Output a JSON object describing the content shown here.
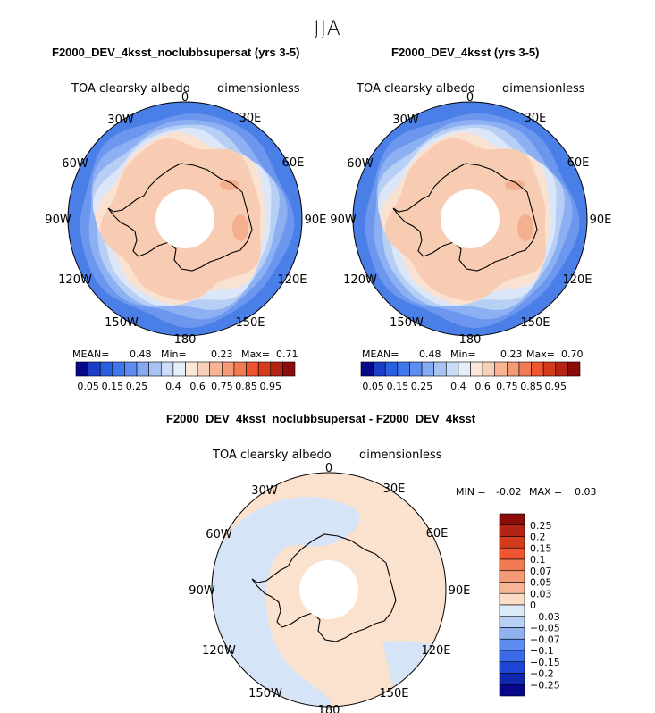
{
  "page_title": "JJA",
  "chart_data": [
    {
      "type": "heatmap",
      "projection": "south polar stereographic",
      "title": "F2000_DEV_4ksst_noclubbsupersat (yrs 3-5)",
      "variable": "TOA clearsky albedo",
      "units": "dimensionless",
      "stats": {
        "mean_label": "MEAN=",
        "mean": "0.48",
        "min_label": "Min=",
        "min": "0.23",
        "max_label": "Max=",
        "max": "0.71"
      },
      "longitude_labels": [
        "0",
        "30E",
        "60E",
        "90E",
        "120E",
        "150E",
        "180",
        "150W",
        "120W",
        "90W",
        "60W",
        "30W"
      ],
      "colorbar": {
        "levels": [
          "0.05",
          "0.15",
          "0.25",
          "0.4",
          "0.6",
          "0.75",
          "0.85",
          "0.95"
        ],
        "colors": [
          "#08088a",
          "#1a3ec8",
          "#2a5fe0",
          "#3f77ec",
          "#5d8df0",
          "#85aaf2",
          "#a9c4f4",
          "#cadcf7",
          "#e6eef9",
          "#fbe7d8",
          "#f8d0b8",
          "#f7b596",
          "#f49a76",
          "#f17a52",
          "#ee5530",
          "#d43a1c",
          "#b52314",
          "#8c0c0a"
        ]
      }
    },
    {
      "type": "heatmap",
      "projection": "south polar stereographic",
      "title": "F2000_DEV_4ksst (yrs 3-5)",
      "variable": "TOA clearsky albedo",
      "units": "dimensionless",
      "stats": {
        "mean_label": "MEAN=",
        "mean": "0.48",
        "min_label": "Min=",
        "min": "0.23",
        "max_label": "Max=",
        "max": "0.70"
      },
      "longitude_labels": [
        "0",
        "30E",
        "60E",
        "90E",
        "120E",
        "150E",
        "180",
        "150W",
        "120W",
        "90W",
        "60W",
        "30W"
      ],
      "colorbar": {
        "levels": [
          "0.05",
          "0.15",
          "0.25",
          "0.4",
          "0.6",
          "0.75",
          "0.85",
          "0.95"
        ],
        "colors": [
          "#08088a",
          "#1a3ec8",
          "#2a5fe0",
          "#3f77ec",
          "#5d8df0",
          "#85aaf2",
          "#a9c4f4",
          "#cadcf7",
          "#e6eef9",
          "#fbe7d8",
          "#f8d0b8",
          "#f7b596",
          "#f49a76",
          "#f17a52",
          "#ee5530",
          "#d43a1c",
          "#b52314",
          "#8c0c0a"
        ]
      }
    },
    {
      "type": "heatmap",
      "projection": "south polar stereographic",
      "title": "F2000_DEV_4ksst_noclubbsupersat - F2000_DEV_4ksst",
      "variable": "TOA clearsky albedo",
      "units": "dimensionless",
      "stats": {
        "min_label": "MIN =",
        "min": "-0.02",
        "max_label": "MAX =",
        "max": "0.03"
      },
      "longitude_labels": [
        "0",
        "30E",
        "60E",
        "90E",
        "120E",
        "150E",
        "180",
        "150W",
        "120W",
        "90W",
        "60W",
        "30W"
      ],
      "colorbar": {
        "orientation": "vertical",
        "levels": [
          "0.25",
          "0.2",
          "0.15",
          "0.1",
          "0.07",
          "0.05",
          "0.03",
          "0",
          "−0.03",
          "−0.05",
          "−0.07",
          "−0.1",
          "−0.15",
          "−0.2",
          "−0.25"
        ],
        "colors": [
          "#8c0c0a",
          "#b52314",
          "#d43a1c",
          "#ee5530",
          "#f17a52",
          "#f49a76",
          "#f7b596",
          "#fbdcc6",
          "#dce9f7",
          "#b8d0f3",
          "#8fb2ef",
          "#5d8df0",
          "#3a6ae6",
          "#1f46d6",
          "#1028b0",
          "#08088a"
        ]
      }
    }
  ]
}
